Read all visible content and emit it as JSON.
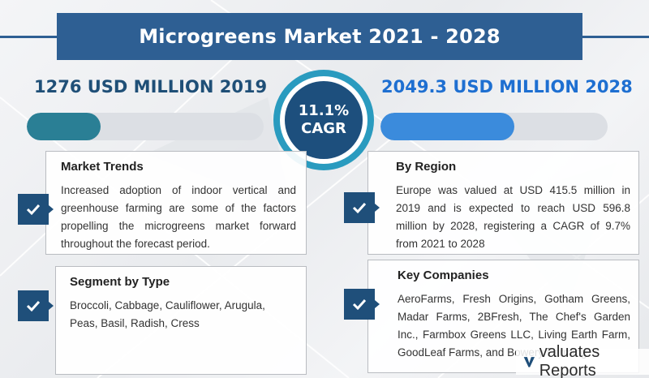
{
  "title": "Microgreens Market 2021 - 2028",
  "stats": {
    "left_label": "1276 USD MILLION 2019",
    "right_label": "2049.3  USD MILLION 2028",
    "left_bar_fill": 0.31,
    "right_bar_fill": 0.59
  },
  "cagr": {
    "value": "11.1%",
    "label": "CAGR"
  },
  "colors": {
    "banner": "#2e5f93",
    "left_bar": "#2a7f95",
    "right_bar": "#3b8bdc",
    "check_box": "#1f4f7a",
    "cagr_ring": "#2a9bbf"
  },
  "sections": {
    "market_trends": {
      "heading": "Market Trends",
      "body": "Increased adoption of indoor vertical and greenhouse farming are some of the factors propelling the microgreens market forward throughout the forecast period.",
      "icon": "checkmark-icon"
    },
    "segment_by_type": {
      "heading": "Segment by Type",
      "body": "Broccoli, Cabbage, Cauliflower, Arugula, Peas, Basil, Radish, Cress",
      "icon": "checkmark-icon"
    },
    "by_region": {
      "heading": "By Region",
      "body": "Europe was valued at USD 415.5 million in 2019 and is expected to reach USD 596.8 million by 2028, registering a CAGR of 9.7% from 2021 to 2028",
      "icon": "checkmark-icon"
    },
    "key_companies": {
      "heading": "Key Companies",
      "body": "AeroFarms, Fresh Origins, Gotham Greens, Madar Farms, 2BFresh, The Chef's Garden Inc., Farmbox Greens LLC, Living Earth Farm, GoodLeaf Farms, and Bowery Farming.",
      "icon": "checkmark-icon"
    }
  },
  "brand": {
    "name": "valuates Reports",
    "icon": "valuates-v-logo"
  }
}
